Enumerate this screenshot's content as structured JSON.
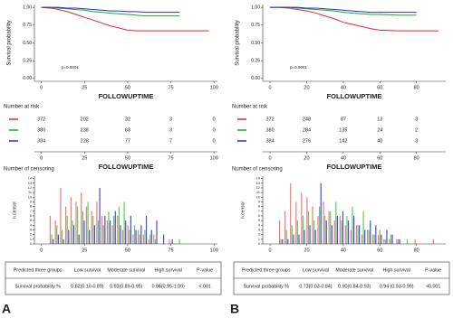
{
  "chart_data": [
    {
      "type": "km",
      "ylabel": "Survival probability",
      "xlabel": "FOLLOWUPTIME",
      "annotation": "p=0.0001",
      "xlim": [
        -4,
        102
      ],
      "xticks": [
        0,
        25,
        50,
        75,
        100
      ],
      "ylim": [
        -0.04,
        1.04
      ],
      "yticks": [
        {
          "value": 0,
          "label": "0.00"
        },
        {
          "value": 0.25,
          "label": "0.25"
        },
        {
          "value": 0.5,
          "label": "0.50"
        },
        {
          "value": 0.75,
          "label": "0.75"
        },
        {
          "value": 1,
          "label": "1.00"
        }
      ],
      "x": [
        0,
        5,
        10,
        15,
        20,
        25,
        30,
        35,
        40,
        45,
        50,
        55,
        60,
        70,
        80,
        90,
        97
      ],
      "series": [
        {
          "color": "#e8262b",
          "values": [
            1,
            0.99,
            0.97,
            0.94,
            0.9,
            0.86,
            0.82,
            0.78,
            0.74,
            0.71,
            0.68,
            0.67,
            0.67,
            0.67,
            0.67,
            0.67,
            0.67
          ]
        },
        {
          "color": "#22a822",
          "values": [
            1,
            1,
            0.99,
            0.98,
            0.97,
            0.96,
            0.94,
            0.93,
            0.92,
            0.91,
            0.9,
            0.89,
            0.88,
            0.88,
            0.88,
            null,
            null
          ]
        },
        {
          "color": "#2b2bd6",
          "values": [
            1,
            1,
            1,
            0.99,
            0.99,
            0.98,
            0.97,
            0.96,
            0.95,
            0.95,
            0.94,
            0.94,
            0.93,
            0.93,
            0.93,
            null,
            null
          ]
        }
      ]
    },
    {
      "type": "risk",
      "title": "Number at risk",
      "xlabel": "FOLLOWUPTIME",
      "xlim": [
        -4,
        102
      ],
      "xticks": [
        0,
        25,
        50,
        75,
        100
      ],
      "series": [
        {
          "color": "#e8262b",
          "values": [
            372,
            202,
            32,
            3,
            0
          ]
        },
        {
          "color": "#22a822",
          "values": [
            380,
            238,
            63,
            3,
            0
          ]
        },
        {
          "color": "#2b2bd6",
          "values": [
            384,
            228,
            77,
            7,
            0
          ]
        }
      ]
    },
    {
      "type": "censor",
      "title": "Number of censoring",
      "ylabel": "n.censor",
      "xlim": [
        -4,
        102
      ],
      "xticks": [
        0,
        25,
        50,
        75,
        100
      ],
      "ylim": [
        0,
        14.5
      ],
      "yticks": [
        0,
        1,
        2,
        3,
        4,
        5,
        6,
        7,
        8,
        9,
        10,
        11,
        12,
        13,
        14
      ],
      "x": [
        6,
        9,
        12,
        15,
        18,
        21,
        24,
        27,
        30,
        33,
        36,
        39,
        42,
        45,
        48,
        51,
        54,
        57,
        60,
        63,
        66,
        70,
        75,
        80,
        85
      ],
      "series": [
        {
          "color": "#f07a7a",
          "values": [
            6,
            5,
            12,
            8,
            10,
            9,
            11,
            8,
            7,
            9,
            6,
            5,
            4,
            6,
            3,
            4,
            2,
            3,
            2,
            1,
            2,
            0,
            1,
            0,
            0
          ]
        },
        {
          "color": "#5fce5f",
          "values": [
            2,
            4,
            3,
            6,
            5,
            8,
            7,
            9,
            6,
            5,
            4,
            7,
            6,
            8,
            9,
            3,
            4,
            2,
            3,
            2,
            1,
            0,
            0,
            1,
            0
          ]
        },
        {
          "color": "#4a4ae0",
          "values": [
            1,
            2,
            1,
            3,
            4,
            2,
            5,
            3,
            4,
            12,
            6,
            5,
            7,
            4,
            5,
            6,
            3,
            4,
            6,
            3,
            5,
            2,
            1,
            0,
            0
          ]
        }
      ]
    },
    {
      "type": "km",
      "ylabel": "Survival probability",
      "xlabel": "FOLLOWUPTIME",
      "annotation": "p=0.0001",
      "xlim": [
        -4,
        96
      ],
      "xticks": [
        0,
        20,
        40,
        60,
        80
      ],
      "ylim": [
        -0.04,
        1.04
      ],
      "yticks": [
        {
          "value": 0,
          "label": "0.00"
        },
        {
          "value": 0.25,
          "label": "0.25"
        },
        {
          "value": 0.5,
          "label": "0.50"
        },
        {
          "value": 0.75,
          "label": "0.75"
        },
        {
          "value": 1,
          "label": "1.00"
        }
      ],
      "x": [
        0,
        5,
        10,
        15,
        20,
        25,
        30,
        35,
        40,
        45,
        50,
        55,
        60,
        70,
        80,
        92
      ],
      "series": [
        {
          "color": "#e8262b",
          "values": [
            1,
            1,
            0.99,
            0.97,
            0.95,
            0.92,
            0.88,
            0.84,
            0.79,
            0.76,
            0.73,
            0.7,
            0.68,
            0.67,
            0.67,
            0.67
          ]
        },
        {
          "color": "#22a822",
          "values": [
            1,
            1,
            1,
            0.99,
            0.98,
            0.97,
            0.96,
            0.95,
            0.93,
            0.92,
            0.91,
            0.9,
            0.9,
            0.89,
            0.89,
            null
          ]
        },
        {
          "color": "#2b2bd6",
          "values": [
            1,
            1,
            1,
            1,
            0.99,
            0.99,
            0.98,
            0.97,
            0.96,
            0.95,
            0.94,
            0.93,
            0.93,
            0.93,
            0.93,
            null
          ]
        }
      ]
    },
    {
      "type": "risk",
      "title": "Number at risk",
      "xlabel": "FOLLOWUPTIME",
      "xlim": [
        -4,
        96
      ],
      "xticks": [
        0,
        20,
        40,
        60,
        80
      ],
      "series": [
        {
          "color": "#e8262b",
          "values": [
            372,
            248,
            87,
            13,
            3
          ]
        },
        {
          "color": "#22a822",
          "values": [
            380,
            284,
            135,
            24,
            2
          ]
        },
        {
          "color": "#2b2bd6",
          "values": [
            384,
            276,
            142,
            40,
            3
          ]
        }
      ]
    },
    {
      "type": "censor",
      "title": "Number of censoring",
      "ylabel": "n.censor",
      "xlim": [
        -4,
        96
      ],
      "xticks": [
        0,
        20,
        40,
        60,
        80
      ],
      "ylim": [
        0,
        14.5
      ],
      "yticks": [
        0,
        1,
        2,
        3,
        4,
        5,
        6,
        7,
        8,
        9,
        10,
        11,
        12,
        13,
        14
      ],
      "x": [
        6,
        9,
        12,
        15,
        18,
        21,
        24,
        27,
        30,
        33,
        36,
        39,
        42,
        45,
        48,
        51,
        54,
        57,
        60,
        63,
        66,
        70,
        75,
        80,
        90
      ],
      "series": [
        {
          "color": "#f07a7a",
          "values": [
            5,
            7,
            13,
            9,
            11,
            10,
            8,
            6,
            9,
            7,
            5,
            6,
            4,
            3,
            4,
            2,
            3,
            2,
            2,
            1,
            1,
            1,
            0,
            1,
            1
          ]
        },
        {
          "color": "#5fce5f",
          "values": [
            1,
            3,
            4,
            5,
            6,
            7,
            5,
            8,
            6,
            7,
            9,
            5,
            6,
            8,
            4,
            7,
            3,
            2,
            3,
            1,
            2,
            1,
            1,
            0,
            0
          ]
        },
        {
          "color": "#4a4ae0",
          "values": [
            1,
            1,
            2,
            2,
            3,
            4,
            3,
            13,
            5,
            4,
            6,
            7,
            5,
            6,
            4,
            3,
            5,
            4,
            2,
            3,
            2,
            1,
            0,
            0,
            0
          ]
        }
      ]
    }
  ],
  "tables": [
    {
      "header": [
        "Predicted three groups",
        "Low survival",
        "Moderate survival",
        "High survival",
        "P-value"
      ],
      "rows": [
        [
          "Survival probability %",
          "0.82(0.10-0.89)",
          "0.93(0.89-0.95)",
          "0.96(0.95-1.00)",
          "<.001"
        ]
      ]
    },
    {
      "header": [
        "Predicted three groups",
        "Low survival",
        "Moderate survival",
        "High survival",
        "P-value"
      ],
      "rows": [
        [
          "Survival probability %",
          "0.73(0.03-0.84)",
          "0.90(0.84-0.93)",
          "0.94 (0.93-0.99)",
          "<0.001"
        ]
      ]
    }
  ],
  "panel_labels": [
    "A",
    "B"
  ]
}
